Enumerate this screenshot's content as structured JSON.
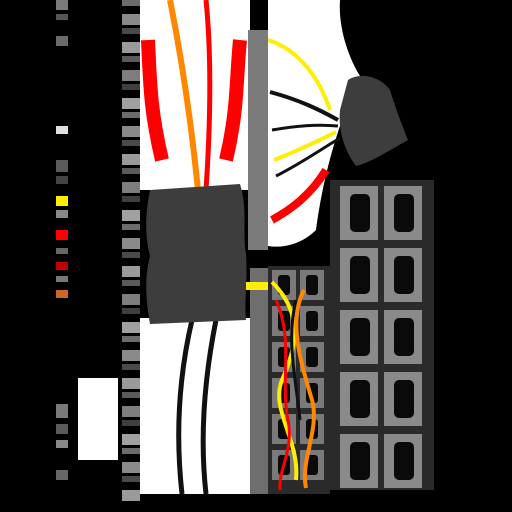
{
  "texture": {
    "background_color": "#000000",
    "panel_color": "#ffffff",
    "connector_color": "#3d3d3d",
    "socket_color": "#0a0a0a",
    "wire_colors": {
      "red": "#ff0000",
      "orange": "#ff8800",
      "yellow": "#ffee00",
      "black": "#111111"
    }
  }
}
